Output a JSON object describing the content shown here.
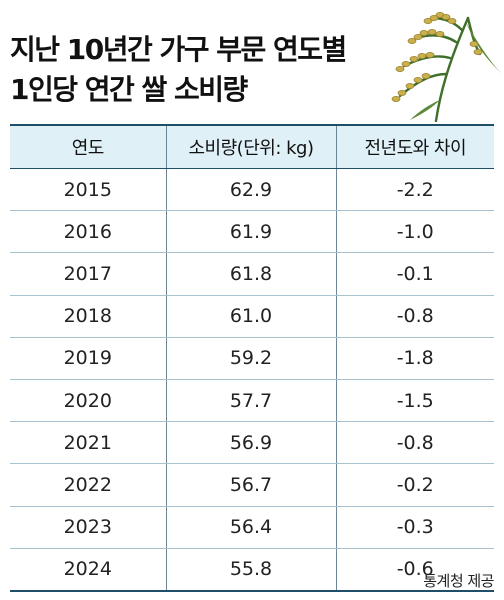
{
  "title_lines": [
    "지난 10년간 가구 부문 연도별",
    "1인당 연간 쌀 소비량"
  ],
  "source": "통계청 제공",
  "colors": {
    "header_bg": "#dff0f7",
    "rule": "#1f4e68",
    "row_line": "#a9c2cf"
  },
  "icons": [
    "rice-stalk-illustration"
  ],
  "chart_data": {
    "type": "table",
    "columns": [
      "연도",
      "소비량(단위: kg)",
      "전년도와 차이"
    ],
    "rows": [
      [
        "2015",
        "62.9",
        "-2.2"
      ],
      [
        "2016",
        "61.9",
        "-1.0"
      ],
      [
        "2017",
        "61.8",
        "-0.1"
      ],
      [
        "2018",
        "61.0",
        "-0.8"
      ],
      [
        "2019",
        "59.2",
        "-1.8"
      ],
      [
        "2020",
        "57.7",
        "-1.5"
      ],
      [
        "2021",
        "56.9",
        "-0.8"
      ],
      [
        "2022",
        "56.7",
        "-0.2"
      ],
      [
        "2023",
        "56.4",
        "-0.3"
      ],
      [
        "2024",
        "55.8",
        "-0.6"
      ]
    ]
  }
}
